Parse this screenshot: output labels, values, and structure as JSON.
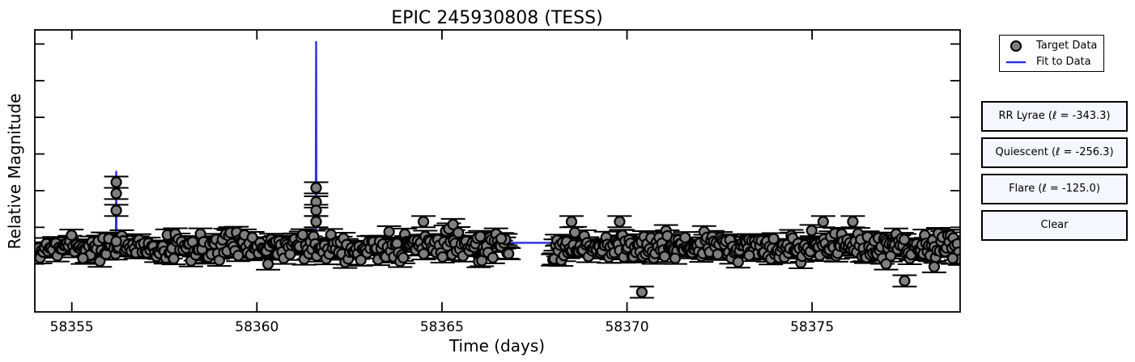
{
  "chart_data": {
    "type": "scatter",
    "title": "EPIC 245930808 (TESS)",
    "xlabel": "Time (days)",
    "ylabel": "Relative Magnitude",
    "xlim": [
      58354.0,
      58379.0
    ],
    "ylim": [
      1.0,
      0.0
    ],
    "x_ticks": [
      58355,
      58360,
      58365,
      58370,
      58375
    ],
    "y_ticks_unlabeled": [
      0.83,
      0.7,
      0.57,
      0.44,
      0.31,
      0.18,
      0.05
    ],
    "grid": false,
    "legend_placement": "outside-top-right",
    "colors": {
      "marker_fill": "#7f7f7f",
      "marker_edge": "#000000",
      "errorbar": "#000000",
      "fit_line": "#3333dd"
    },
    "series": [
      {
        "name": "Target Data",
        "kind": "scatter_with_errorbars",
        "yerr": 0.02,
        "quiet_level": 0.77,
        "segments": [
          {
            "x_start": 58354.1,
            "x_end": 58366.8,
            "n_points": 300
          },
          {
            "x_start": 58368.0,
            "x_end": 58379.0,
            "n_points": 300
          }
        ],
        "notable_points": [
          {
            "x": 58355.3,
            "y": 0.81
          },
          {
            "x": 58356.0,
            "y": 0.74
          },
          {
            "x": 58356.2,
            "y": 0.64
          },
          {
            "x": 58356.2,
            "y": 0.58
          },
          {
            "x": 58356.2,
            "y": 0.54
          },
          {
            "x": 58356.2,
            "y": 0.75
          },
          {
            "x": 58361.6,
            "y": 0.56
          },
          {
            "x": 58361.6,
            "y": 0.61
          },
          {
            "x": 58361.6,
            "y": 0.64
          },
          {
            "x": 58361.6,
            "y": 0.68
          },
          {
            "x": 58364.5,
            "y": 0.68
          },
          {
            "x": 58365.3,
            "y": 0.69
          },
          {
            "x": 58366.6,
            "y": 0.74
          },
          {
            "x": 58368.5,
            "y": 0.68
          },
          {
            "x": 58369.8,
            "y": 0.68
          },
          {
            "x": 58370.4,
            "y": 0.93
          },
          {
            "x": 58371.3,
            "y": 0.81
          },
          {
            "x": 58373.3,
            "y": 0.8
          },
          {
            "x": 58377.0,
            "y": 0.83
          },
          {
            "x": 58377.5,
            "y": 0.89
          },
          {
            "x": 58378.3,
            "y": 0.84
          },
          {
            "x": 58378.8,
            "y": 0.81
          },
          {
            "x": 58375.3,
            "y": 0.68
          },
          {
            "x": 58376.1,
            "y": 0.68
          }
        ]
      },
      {
        "name": "Fit to Data",
        "kind": "line",
        "baseline": 0.755,
        "spikes": [
          {
            "x": 58356.2,
            "y": 0.5
          },
          {
            "x": 58361.6,
            "y": 0.04
          }
        ]
      }
    ]
  },
  "legend": {
    "target_label": "Target Data",
    "fit_label": "Fit to Data"
  },
  "buttons": {
    "rr_lyrae": "RR Lyrae (ℓ = -343.3)",
    "quiescent": "Quiescent (ℓ = -256.3)",
    "flare": "Flare (ℓ = -125.0)",
    "clear": "Clear"
  }
}
